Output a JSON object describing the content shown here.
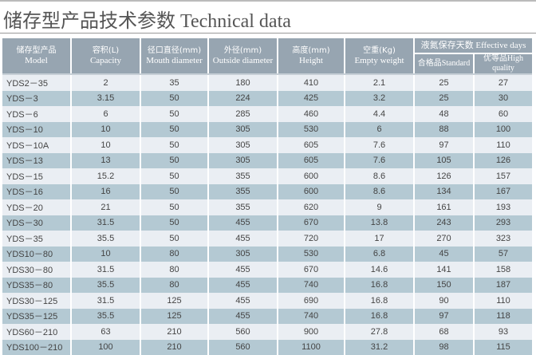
{
  "title": "储存型产品技术参数 Technical data",
  "header": {
    "model": {
      "cn": "储存型产品",
      "en": "Model"
    },
    "capacity": {
      "cn": "容积(L)",
      "en": "Capacity"
    },
    "mouth": {
      "cn": "径口直径(mm)",
      "en": "Mouth diameter"
    },
    "outside": {
      "cn": "外径(mm)",
      "en": "Outside diameter"
    },
    "height": {
      "cn": "高度(mm)",
      "en": "Height"
    },
    "weight": {
      "cn": "空重(Kg)",
      "en": "Empty weight"
    },
    "days": "液氮保存天数 Effective days",
    "standard": "合格品Standard",
    "high": "优等品High quality"
  },
  "colors": {
    "header": "#97a5b1",
    "row_light": "#eaeef3",
    "row_dark": "#b4c9d3"
  },
  "rows": [
    [
      "YDS2－35",
      "2",
      "35",
      "180",
      "410",
      "2.1",
      "25",
      "27"
    ],
    [
      "YDS－3",
      "3.15",
      "50",
      "224",
      "425",
      "3.2",
      "25",
      "30"
    ],
    [
      "YDS－6",
      "6",
      "50",
      "285",
      "460",
      "4.4",
      "48",
      "60"
    ],
    [
      "YDS－10",
      "10",
      "50",
      "305",
      "530",
      "6",
      "88",
      "100"
    ],
    [
      "YDS－10A",
      "10",
      "50",
      "305",
      "605",
      "7.6",
      "97",
      "110"
    ],
    [
      "YDS－13",
      "13",
      "50",
      "305",
      "605",
      "7.6",
      "105",
      "126"
    ],
    [
      "YDS－15",
      "15.2",
      "50",
      "355",
      "600",
      "8.6",
      "126",
      "157"
    ],
    [
      "YDS－16",
      "16",
      "50",
      "355",
      "600",
      "8.6",
      "134",
      "167"
    ],
    [
      "YDS－20",
      "21",
      "50",
      "355",
      "620",
      "9",
      "161",
      "193"
    ],
    [
      "YDS－30",
      "31.5",
      "50",
      "455",
      "670",
      "13.8",
      "243",
      "293"
    ],
    [
      "YDS－35",
      "35.5",
      "50",
      "455",
      "720",
      "17",
      "270",
      "323"
    ],
    [
      "YDS10－80",
      "10",
      "80",
      "305",
      "530",
      "6.8",
      "45",
      "57"
    ],
    [
      "YDS30－80",
      "31.5",
      "80",
      "455",
      "670",
      "14.6",
      "141",
      "158"
    ],
    [
      "YDS35－80",
      "35.5",
      "80",
      "455",
      "740",
      "16.8",
      "150",
      "187"
    ],
    [
      "YDS30－125",
      "31.5",
      "125",
      "455",
      "690",
      "16.8",
      "90",
      "110"
    ],
    [
      "YDS35－125",
      "35.5",
      "125",
      "455",
      "740",
      "16.8",
      "97",
      "118"
    ],
    [
      "YDS60－210",
      "63",
      "210",
      "560",
      "900",
      "27.8",
      "68",
      "93"
    ],
    [
      "YDS100－210",
      "100",
      "210",
      "560",
      "1100",
      "31.2",
      "98",
      "115"
    ]
  ]
}
